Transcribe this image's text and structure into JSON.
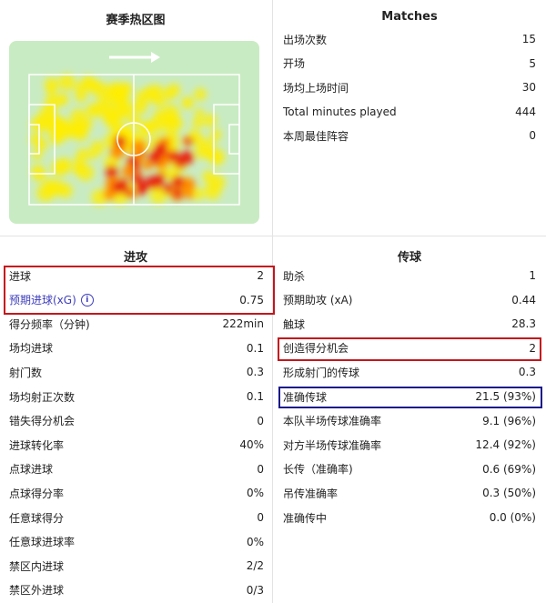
{
  "heatmap": {
    "title": "赛季热区图",
    "direction": "arrow-right-icon",
    "pitch_color": "#c9ebc3"
  },
  "matches": {
    "title": "Matches",
    "rows": [
      {
        "label": "出场次数",
        "value": "15"
      },
      {
        "label": "开场",
        "value": "5"
      },
      {
        "label": "场均上场时间",
        "value": "30"
      },
      {
        "label": "Total minutes played",
        "value": "444"
      },
      {
        "label": "本周最佳阵容",
        "value": "0"
      }
    ]
  },
  "attack": {
    "title": "进攻",
    "rows": [
      {
        "label": "进球",
        "value": "2"
      },
      {
        "label": "预期进球(xG)",
        "value": "0.75"
      },
      {
        "label": "得分频率（分钟)",
        "value": "222min"
      },
      {
        "label": "场均进球",
        "value": "0.1"
      },
      {
        "label": "射门数",
        "value": "0.3"
      },
      {
        "label": "场均射正次数",
        "value": "0.1"
      },
      {
        "label": "错失得分机会",
        "value": "0"
      },
      {
        "label": "进球转化率",
        "value": "40%"
      },
      {
        "label": "点球进球",
        "value": "0"
      },
      {
        "label": "点球得分率",
        "value": "0%"
      },
      {
        "label": "任意球得分",
        "value": "0"
      },
      {
        "label": "任意球进球率",
        "value": "0%"
      },
      {
        "label": "禁区内进球",
        "value": "2/2"
      },
      {
        "label": "禁区外进球",
        "value": "0/3"
      }
    ]
  },
  "passing": {
    "title": "传球",
    "rows": [
      {
        "label": "助杀",
        "value": "1"
      },
      {
        "label": "预期助攻 (xA)",
        "value": "0.44"
      },
      {
        "label": "触球",
        "value": "28.3"
      },
      {
        "label": "创造得分机会",
        "value": "2"
      },
      {
        "label": "形成射门的传球",
        "value": "0.3"
      },
      {
        "label": "准确传球",
        "value": "21.5 (93%)"
      },
      {
        "label": "本队半场传球准确率",
        "value": "9.1 (96%)"
      },
      {
        "label": "对方半场传球准确率",
        "value": "12.4 (92%)"
      },
      {
        "label": "长传（准确率)",
        "value": "0.6 (69%)"
      },
      {
        "label": "吊传准确率",
        "value": "0.3 (50%)"
      },
      {
        "label": "准确传中",
        "value": "0.0 (0%)"
      }
    ]
  },
  "highlight_colors": {
    "red": "#c4161c",
    "blue": "#1a1a8c"
  }
}
